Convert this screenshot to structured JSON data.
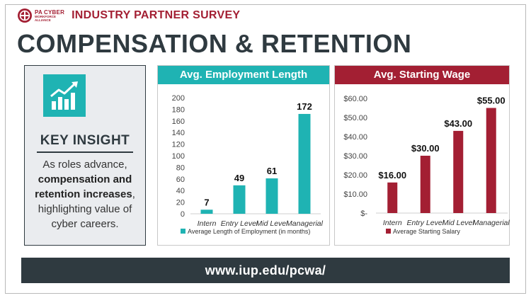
{
  "header": {
    "logo_line1": "PA CYBER",
    "logo_line2": "WORKFORCE",
    "logo_line3": "ALLIANCE",
    "survey_title": "INDUSTRY PARTNER SURVEY"
  },
  "main_title": "COMPENSATION & RETENTION",
  "insight": {
    "icon": "growth-chart-icon",
    "title": "KEY INSIGHT",
    "text_before": "As roles advance,",
    "text_bold": "compensation and retention increases",
    "text_after": ", highlighting value of cyber careers."
  },
  "footer": {
    "url": "www.iup.edu/pcwa/"
  },
  "colors": {
    "teal": "#1fb3b3",
    "maroon": "#a31f33",
    "dark": "#2f3a40"
  },
  "chart_data": [
    {
      "type": "bar",
      "title": "Avg. Employment Length",
      "categories": [
        "Intern",
        "Entry Level",
        "Mid Level",
        "Managerial"
      ],
      "series": [
        {
          "name": "Average Length of Employment (in months)",
          "values": [
            7,
            49,
            61,
            172
          ]
        }
      ],
      "data_labels": [
        "7",
        "49",
        "61",
        "172"
      ],
      "ylim": [
        0,
        200
      ],
      "yticks": [
        0,
        20,
        40,
        60,
        80,
        100,
        120,
        140,
        160,
        180,
        200
      ],
      "ytick_labels": [
        "0",
        "20",
        "40",
        "60",
        "80",
        "100",
        "120",
        "140",
        "160",
        "180",
        "200"
      ],
      "legend": "bottom",
      "grid": false,
      "color": "#1fb3b3"
    },
    {
      "type": "bar",
      "title": "Avg. Starting Wage",
      "categories": [
        "Intern",
        "Entry Level",
        "Mid Level",
        "Managerial"
      ],
      "series": [
        {
          "name": "Average Starting Salary",
          "values": [
            16,
            30,
            43,
            55
          ]
        }
      ],
      "data_labels": [
        "$16.00",
        "$30.00",
        "$43.00",
        "$55.00"
      ],
      "ylim": [
        0,
        60
      ],
      "yticks": [
        0,
        10,
        20,
        30,
        40,
        50,
        60
      ],
      "ytick_labels": [
        "$-",
        "$10.00",
        "$20.00",
        "$30.00",
        "$40.00",
        "$50.00",
        "$60.00"
      ],
      "legend": "bottom",
      "grid": false,
      "color": "#a31f33"
    }
  ]
}
